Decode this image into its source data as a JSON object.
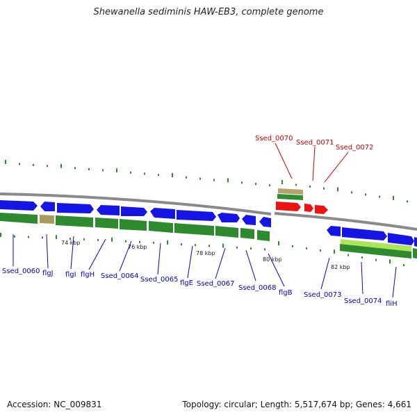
{
  "title": "Shewanella sediminis HAW-EB3, complete genome",
  "footer": {
    "accession": "Accession: NC_009831",
    "summary": "Topology: circular; Length: 5,517,674 bp; Genes: 4,661"
  },
  "colors": {
    "forward_gene": "#1010e8",
    "reverse_gene": "#2a8a2a",
    "highlight_gene": "#ee1111",
    "label_blue": "#0000cc",
    "label_red": "#cc0000",
    "backbone": "#888888"
  },
  "scale_labels": [
    {
      "text": "74 kbp"
    },
    {
      "text": "76 kbp"
    },
    {
      "text": "78 kbp"
    },
    {
      "text": "80 kbp"
    },
    {
      "text": "82 kbp"
    }
  ],
  "gene_labels": {
    "top": [
      {
        "text": "Ssed_0070"
      },
      {
        "text": "Ssed_0071"
      },
      {
        "text": "Ssed_0072"
      }
    ],
    "bottom": [
      {
        "text": "Ssed_0060"
      },
      {
        "text": "flgJ"
      },
      {
        "text": "flgI"
      },
      {
        "text": "flgH"
      },
      {
        "text": "Ssed_0064"
      },
      {
        "text": "Ssed_0065"
      },
      {
        "text": "flgE"
      },
      {
        "text": "Ssed_0067"
      },
      {
        "text": "Ssed_0068"
      },
      {
        "text": "flgB"
      },
      {
        "text": "Ssed_0073"
      },
      {
        "text": "Ssed_0074"
      },
      {
        "text": "fliH"
      }
    ]
  }
}
